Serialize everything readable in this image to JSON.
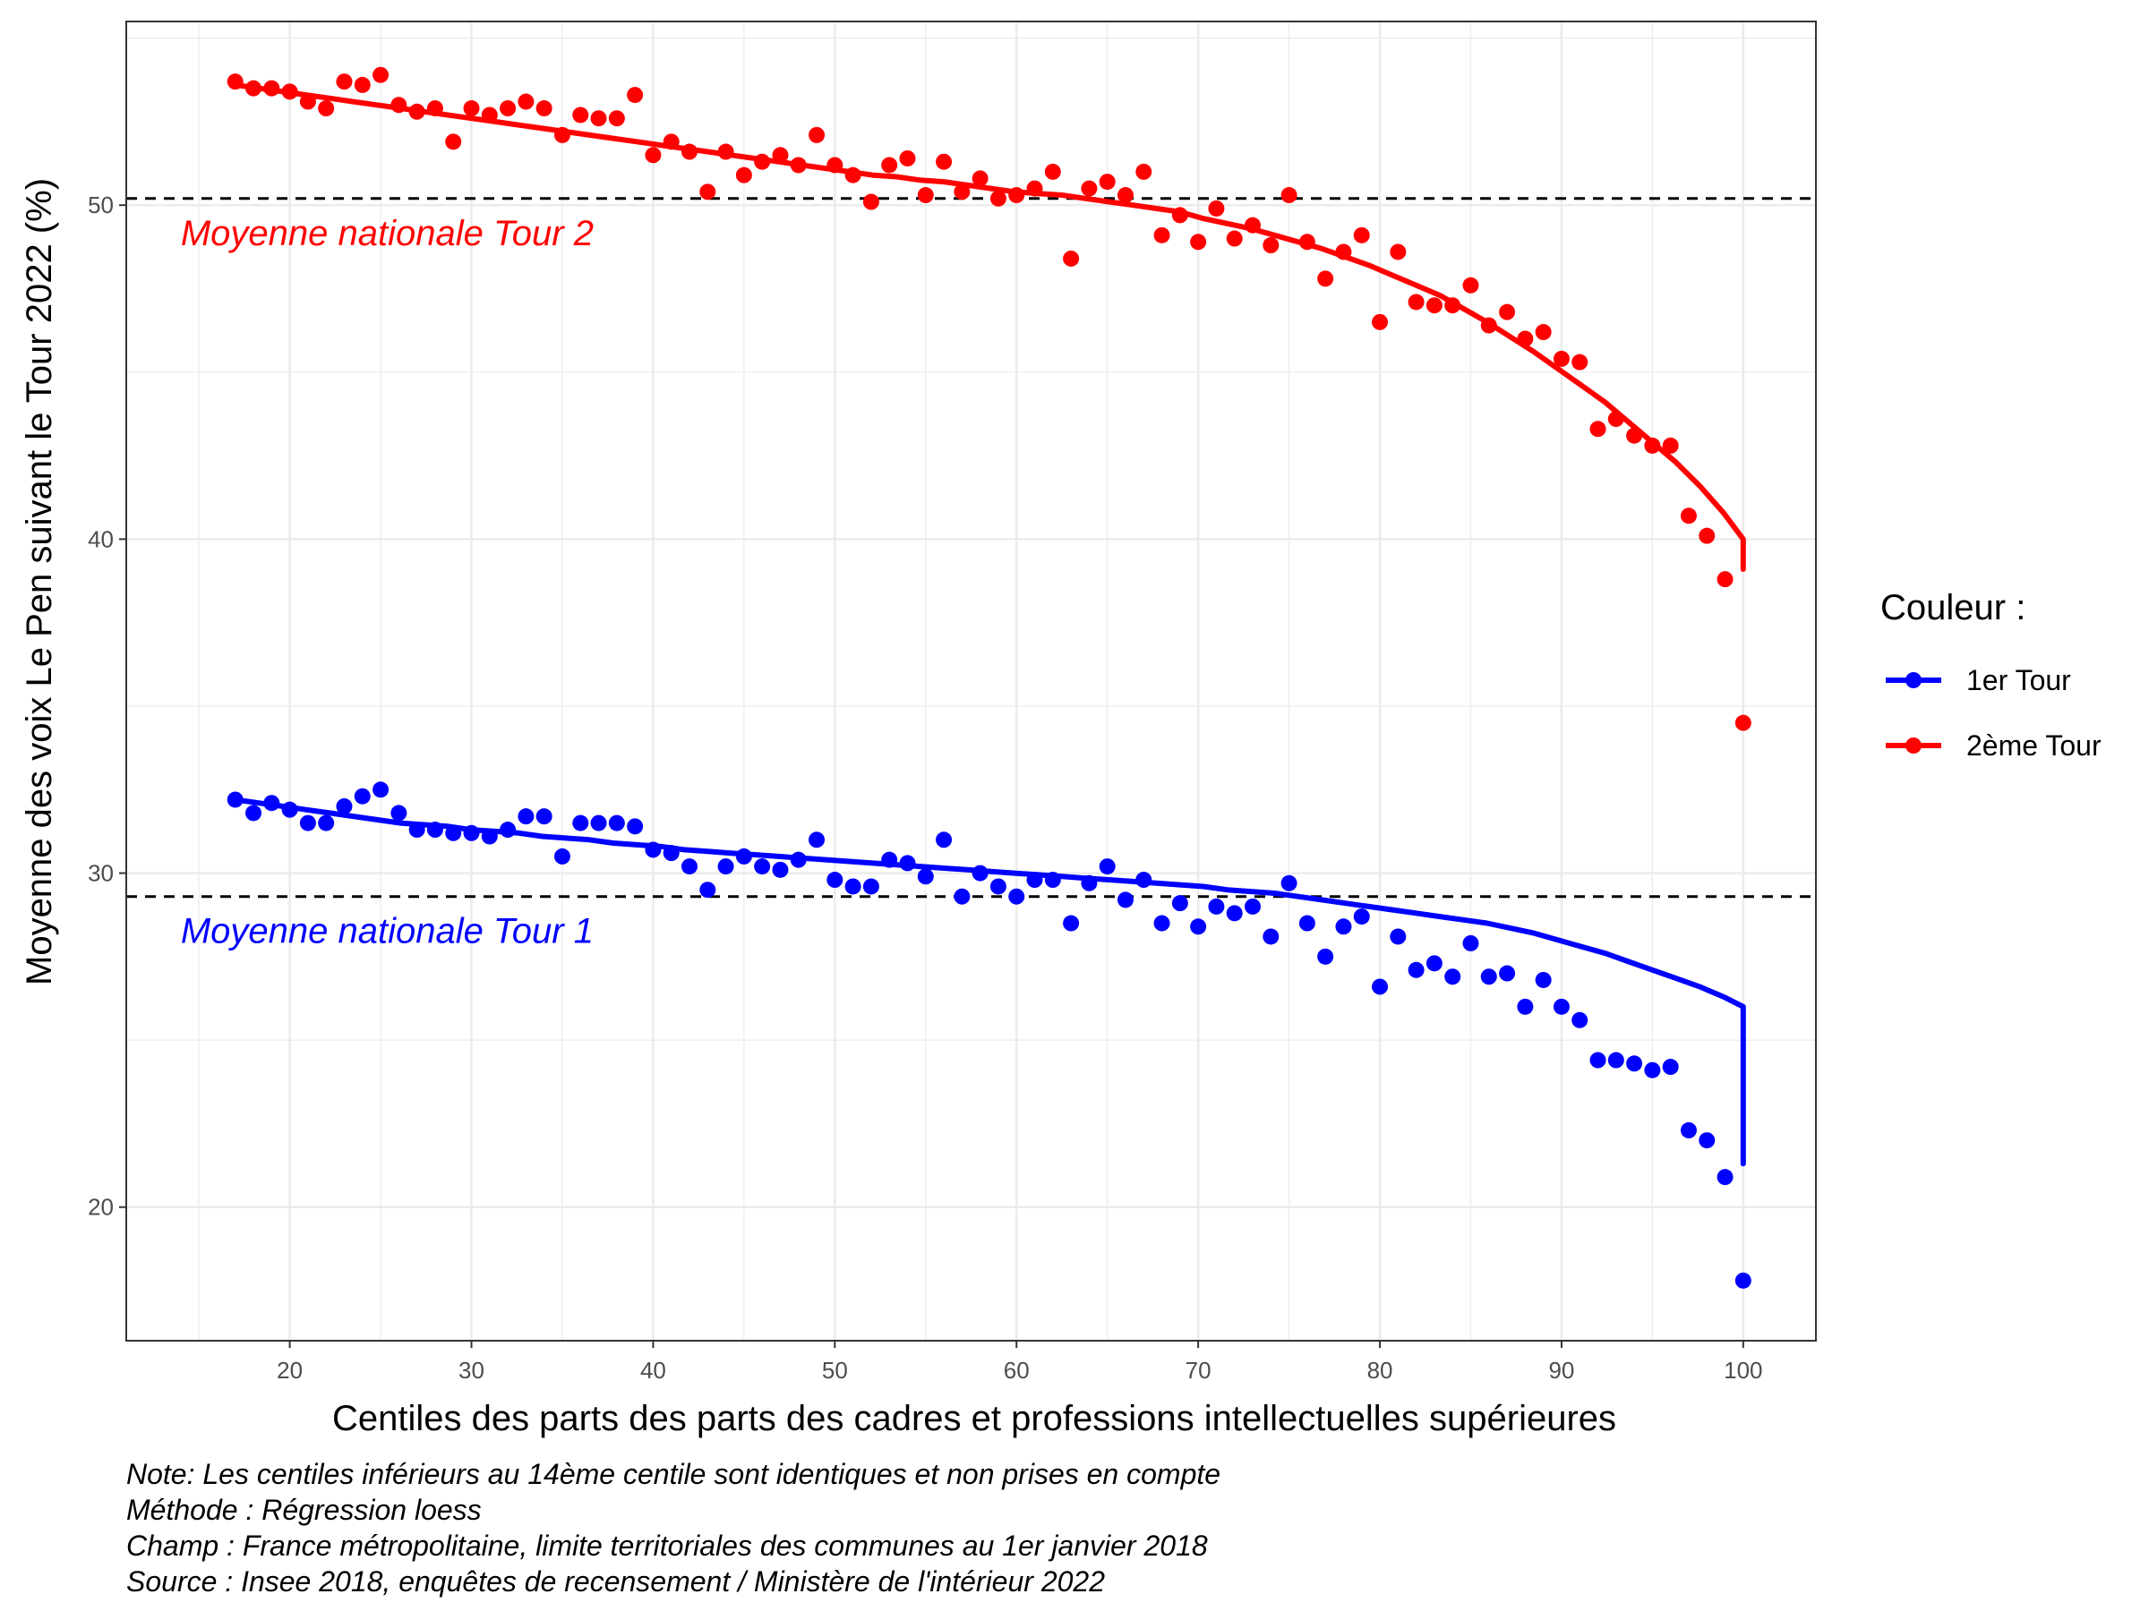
{
  "chart_data": {
    "type": "scatter",
    "xlabel": "Centiles des parts des parts des cadres et professions intellectuelles supérieures",
    "ylabel": "Moyenne des voix Le Pen suivant le Tour 2022 (%)",
    "xlim": [
      11,
      104
    ],
    "ylim": [
      16,
      55.5
    ],
    "xticks": [
      20,
      30,
      40,
      50,
      60,
      70,
      80,
      90,
      100
    ],
    "yticks": [
      20,
      30,
      40,
      50
    ],
    "grid": true,
    "legend": {
      "title": "Couleur :",
      "position": "right",
      "entries": [
        {
          "label": "1er Tour",
          "color": "#0000FF"
        },
        {
          "label": "2ème Tour",
          "color": "#FF0000"
        }
      ]
    },
    "reference_lines": [
      {
        "y": 29.3,
        "label": "Moyenne nationale Tour 1",
        "color": "#0000FF",
        "style": "dashed"
      },
      {
        "y": 50.2,
        "label": "Moyenne nationale Tour 2",
        "color": "#FF0000",
        "style": "dashed"
      }
    ],
    "x": [
      17,
      18,
      19,
      20,
      21,
      22,
      23,
      24,
      25,
      26,
      27,
      28,
      29,
      30,
      31,
      32,
      33,
      34,
      35,
      36,
      37,
      38,
      39,
      40,
      41,
      42,
      43,
      44,
      45,
      46,
      47,
      48,
      49,
      50,
      51,
      52,
      53,
      54,
      55,
      56,
      57,
      58,
      59,
      60,
      61,
      62,
      63,
      64,
      65,
      66,
      67,
      68,
      69,
      70,
      71,
      72,
      73,
      74,
      75,
      76,
      77,
      78,
      79,
      80,
      81,
      82,
      83,
      84,
      85,
      86,
      87,
      88,
      89,
      90,
      91,
      92,
      93,
      94,
      95,
      96,
      97,
      98,
      99,
      100
    ],
    "series": [
      {
        "name": "1er Tour",
        "color": "#0000FF",
        "values": [
          32.2,
          31.8,
          32.1,
          31.9,
          31.5,
          31.5,
          32.0,
          32.3,
          32.5,
          31.8,
          31.3,
          31.3,
          31.2,
          31.2,
          31.1,
          31.3,
          31.7,
          31.7,
          30.5,
          31.5,
          31.5,
          31.5,
          31.4,
          30.7,
          30.6,
          30.2,
          29.5,
          30.2,
          30.5,
          30.2,
          30.1,
          30.4,
          31.0,
          29.8,
          29.6,
          29.6,
          30.4,
          30.3,
          29.9,
          31.0,
          29.3,
          30.0,
          29.6,
          29.3,
          29.8,
          29.8,
          28.5,
          29.7,
          30.2,
          29.2,
          29.8,
          28.5,
          29.1,
          28.4,
          29.0,
          28.8,
          29.0,
          28.1,
          29.7,
          28.5,
          27.5,
          28.4,
          28.7,
          26.6,
          28.1,
          27.1,
          27.3,
          26.9,
          27.9,
          26.9,
          27.0,
          26.0,
          26.8,
          26.0,
          25.6,
          24.4,
          24.4,
          24.3,
          24.1,
          24.2,
          22.3,
          22.0,
          20.9,
          17.8
        ],
        "fit": [
          32.2,
          32.1,
          32.0,
          31.9,
          31.8,
          31.7,
          31.6,
          31.5,
          31.45,
          31.4,
          31.3,
          31.25,
          31.2,
          31.1,
          31.05,
          31.0,
          30.9,
          30.85,
          30.8,
          30.7,
          30.65,
          30.6,
          30.55,
          30.5,
          30.45,
          30.4,
          30.35,
          30.3,
          30.25,
          30.2,
          30.15,
          30.1,
          30.05,
          30.0,
          29.95,
          29.9,
          29.85,
          29.8,
          29.75,
          29.7,
          29.65,
          29.6,
          29.5,
          29.45,
          29.4,
          29.3,
          29.2,
          29.1,
          29.0,
          28.9,
          28.8,
          28.7,
          28.6,
          28.5,
          28.35,
          28.2,
          28.0,
          27.8,
          27.6,
          27.35,
          27.1,
          26.85,
          26.6,
          26.3,
          26.0,
          25.7,
          25.35,
          25.0,
          24.6,
          24.2,
          23.8,
          23.3,
          22.8,
          22.3,
          21.8,
          21.3
        ]
      },
      {
        "name": "2ème Tour",
        "color": "#FF0000",
        "values": [
          53.7,
          53.5,
          53.5,
          53.4,
          53.1,
          52.9,
          53.7,
          53.6,
          53.9,
          53.0,
          52.8,
          52.9,
          51.9,
          52.9,
          52.7,
          52.9,
          53.1,
          52.9,
          52.1,
          52.7,
          52.6,
          52.6,
          53.3,
          51.5,
          51.9,
          51.6,
          50.4,
          51.6,
          50.9,
          51.3,
          51.5,
          51.2,
          52.1,
          51.2,
          50.9,
          50.1,
          51.2,
          51.4,
          50.3,
          51.3,
          50.4,
          50.8,
          50.2,
          50.3,
          50.5,
          51.0,
          48.4,
          50.5,
          50.7,
          50.3,
          51.0,
          49.1,
          49.7,
          48.9,
          49.9,
          49.0,
          49.4,
          48.8,
          50.3,
          48.9,
          47.8,
          48.6,
          49.1,
          46.5,
          48.6,
          47.1,
          47.0,
          47.0,
          47.6,
          46.4,
          46.8,
          46.0,
          46.2,
          45.4,
          45.3,
          43.3,
          43.6,
          43.1,
          42.8,
          42.8,
          40.7,
          40.1,
          38.8,
          34.5
        ],
        "fit": [
          53.6,
          53.5,
          53.4,
          53.3,
          53.2,
          53.1,
          53.0,
          52.9,
          52.8,
          52.7,
          52.6,
          52.5,
          52.4,
          52.3,
          52.2,
          52.1,
          52.0,
          51.9,
          51.8,
          51.7,
          51.6,
          51.5,
          51.4,
          51.3,
          51.2,
          51.1,
          51.0,
          50.9,
          50.85,
          50.75,
          50.7,
          50.6,
          50.5,
          50.4,
          50.35,
          50.3,
          50.2,
          50.1,
          50.0,
          49.9,
          49.8,
          49.6,
          49.45,
          49.3,
          49.1,
          48.9,
          48.7,
          48.45,
          48.2,
          47.9,
          47.6,
          47.3,
          46.9,
          46.5,
          46.05,
          45.6,
          45.1,
          44.6,
          44.1,
          43.5,
          42.9,
          42.3,
          41.6,
          40.8,
          40.0,
          39.1
        ]
      }
    ],
    "fit_x_start": 17,
    "fit_x_step": 1.3,
    "caption": [
      "Note: Les centiles inférieurs au 14ème centile sont identiques et non prises en compte",
      "Méthode : Régression loess",
      "Champ : France métropolitaine, limite territoriales des communes au 1er janvier 2018",
      "Source : Insee 2018, enquêtes de recensement / Ministère de l'intérieur 2022"
    ]
  }
}
